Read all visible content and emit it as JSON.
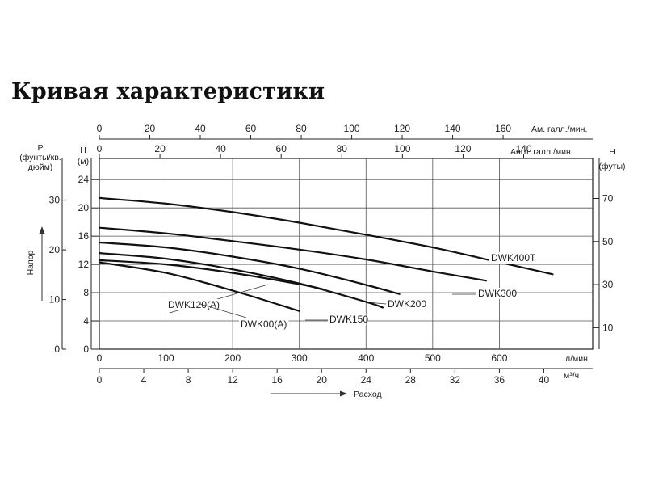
{
  "page": {
    "title": "Кривая характеристики"
  },
  "chart_data": {
    "type": "line",
    "axes": {
      "x_bottom": {
        "label": "л/мин",
        "range": [
          0,
          740
        ],
        "ticks": [
          "0",
          "100",
          "200",
          "300",
          "400",
          "500",
          "600"
        ],
        "tick_values": [
          0,
          100,
          200,
          300,
          400,
          500,
          600
        ]
      },
      "x_bottom_2": {
        "label": "м³/ч",
        "ticks": [
          "0",
          "4",
          "8",
          "12",
          "16",
          "20",
          "24",
          "28",
          "32",
          "36",
          "40"
        ],
        "tick_values": [
          0,
          4,
          8,
          12,
          16,
          20,
          24,
          28,
          32,
          36,
          40
        ]
      },
      "x_top_1": {
        "label": "Ам. галл./мин.",
        "ticks": [
          "0",
          "20",
          "40",
          "60",
          "80",
          "100",
          "120",
          "140",
          "160"
        ],
        "tick_values": [
          0,
          20,
          40,
          60,
          80,
          100,
          120,
          140,
          160
        ]
      },
      "x_top_2": {
        "label": "Англ. галл./мин.",
        "ticks": [
          "0",
          "20",
          "40",
          "60",
          "80",
          "100",
          "120",
          "140"
        ],
        "tick_values": [
          0,
          20,
          40,
          60,
          80,
          100,
          120,
          140
        ]
      },
      "y_left": {
        "label": "H\n(м)",
        "range": [
          0,
          27
        ],
        "ticks": [
          "0",
          "4",
          "8",
          "12",
          "16",
          "20",
          "24"
        ],
        "tick_values": [
          0,
          4,
          8,
          12,
          16,
          20,
          24
        ]
      },
      "y_left_2": {
        "label": "P\n(фунты/кв.\nдюйм)",
        "ticks": [
          "0",
          "10",
          "20",
          "30"
        ],
        "tick_values": [
          0,
          10,
          20,
          30
        ]
      },
      "y_right": {
        "label": "H\n(футы)",
        "ticks": [
          "10",
          "30",
          "50",
          "70"
        ],
        "tick_values": [
          10,
          30,
          50,
          70
        ]
      }
    },
    "ylabel": "Напор",
    "xlabel": "Расход",
    "grid": true,
    "series": [
      {
        "name": "DWK400T",
        "x": [
          0,
          100,
          200,
          300,
          400,
          500,
          600,
          680
        ],
        "y": [
          21.4,
          20.6,
          19.4,
          17.9,
          16.2,
          14.4,
          12.3,
          10.6
        ]
      },
      {
        "name": "DWK300",
        "x": [
          0,
          100,
          200,
          300,
          400,
          500,
          580
        ],
        "y": [
          17.2,
          16.4,
          15.3,
          14.1,
          12.7,
          11.0,
          9.7
        ]
      },
      {
        "name": "DWK200",
        "x": [
          0,
          100,
          200,
          300,
          400,
          450
        ],
        "y": [
          15.1,
          14.4,
          13.1,
          11.4,
          9.1,
          7.8
        ]
      },
      {
        "name": "DWK150",
        "x": [
          0,
          100,
          200,
          300,
          400,
          425
        ],
        "y": [
          13.6,
          12.8,
          11.3,
          9.3,
          6.7,
          5.9
        ]
      },
      {
        "name": "DWK120(A)",
        "x": [
          0,
          100,
          200,
          300,
          335
        ],
        "y": [
          12.6,
          12.0,
          10.8,
          9.2,
          8.5
        ]
      },
      {
        "name": "DWK00(A)",
        "x": [
          0,
          100,
          200,
          300
        ],
        "y": [
          12.3,
          10.8,
          8.3,
          5.4
        ]
      }
    ]
  }
}
